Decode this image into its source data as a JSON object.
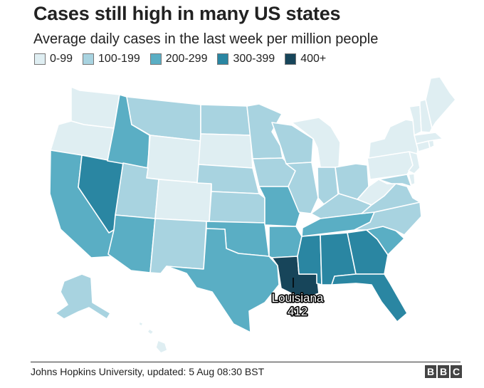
{
  "title": "Cases still high in many US states",
  "subtitle": "Average daily cases in the last week per million people",
  "legend": [
    {
      "label": "0-99",
      "color": "#dfeef2"
    },
    {
      "label": "100-199",
      "color": "#a8d3e0"
    },
    {
      "label": "200-299",
      "color": "#5aaec4"
    },
    {
      "label": "300-399",
      "color": "#2a86a2"
    },
    {
      "label": "400+",
      "color": "#17455a"
    }
  ],
  "callout": {
    "state": "Louisiana",
    "value": "412"
  },
  "source": "Johns Hopkins University, updated: 5 Aug 08:30 BST",
  "logo": [
    "B",
    "B",
    "C"
  ]
}
